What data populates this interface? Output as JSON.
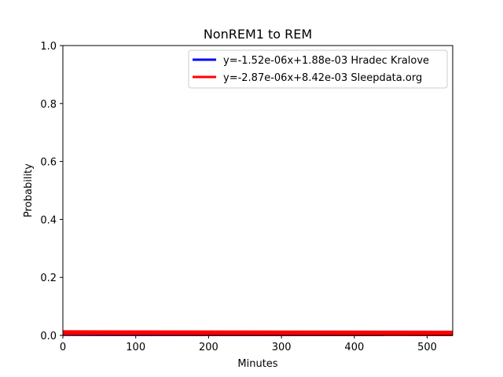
{
  "chart_data": {
    "type": "line",
    "title": "NonREM1 to REM",
    "xlabel": "Minutes",
    "ylabel": "Probability",
    "xlim": [
      0,
      535
    ],
    "ylim": [
      0,
      1.0
    ],
    "x_ticks": [
      0,
      100,
      200,
      300,
      400,
      500
    ],
    "y_ticks": [
      0.0,
      0.2,
      0.4,
      0.6,
      0.8,
      1.0
    ],
    "x_tick_labels": [
      "0",
      "100",
      "200",
      "300",
      "400",
      "500"
    ],
    "y_tick_labels": [
      "0.0",
      "0.2",
      "0.4",
      "0.6",
      "0.8",
      "1.0"
    ],
    "grid": false,
    "legend_position": "top-right",
    "series": [
      {
        "name": "y=-1.52e-06x+1.88e-03 Hradec Kralove",
        "color": "#0000ff",
        "x": [
          0,
          440
        ],
        "y": [
          0.00188,
          0.00121
        ]
      },
      {
        "name": "y=-2.87e-06x+8.42e-03 Sleepdata.org",
        "color": "#ff0000",
        "x": [
          0,
          535
        ],
        "y": [
          0.00842,
          0.00688
        ]
      }
    ]
  }
}
